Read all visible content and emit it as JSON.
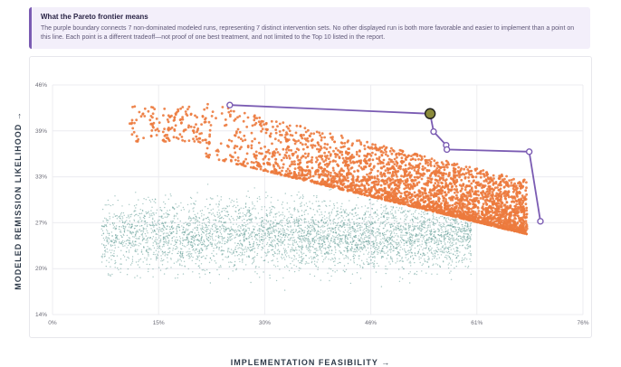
{
  "note": {
    "title": "What the Pareto frontier means",
    "body": "The purple boundary connects 7 non-dominated modeled runs, representing 7 distinct intervention sets. No other displayed run is both more favorable and easier to implement than a point on this line. Each point is a different tradeoff—not proof of one best treatment, and not limited to the Top 10 listed in the report."
  },
  "colors": {
    "frontier": "#7b5cb3",
    "top_runs": "#ec7a3d",
    "other_runs": "#5f9a94",
    "highlight": "#8a8a3a"
  },
  "chart_data": {
    "type": "scatter",
    "xlabel": "IMPLEMENTATION FEASIBILITY →",
    "ylabel": "MODELED REMISSION LIKELIHOOD →",
    "xlim": [
      0,
      76
    ],
    "ylim": [
      14,
      46
    ],
    "x_ticks": [
      "0%",
      "15%",
      "30%",
      "46%",
      "61%",
      "76%"
    ],
    "y_ticks": [
      "46%",
      "39%",
      "33%",
      "27%",
      "20%",
      "14%"
    ],
    "x_tick_values": [
      0,
      15.2,
      30.4,
      45.6,
      60.8,
      76
    ],
    "y_tick_values": [
      46,
      39.6,
      33.2,
      26.8,
      20.4,
      14
    ],
    "grid": true,
    "frontier": [
      {
        "x": 25.4,
        "y": 43.2
      },
      {
        "x": 54.1,
        "y": 42.0
      },
      {
        "x": 54.6,
        "y": 39.5
      },
      {
        "x": 56.4,
        "y": 37.6
      },
      {
        "x": 56.5,
        "y": 37.0
      },
      {
        "x": 68.3,
        "y": 36.7
      },
      {
        "x": 69.9,
        "y": 27.0
      }
    ],
    "highlighted_point": {
      "x": 54.1,
      "y": 42.0
    },
    "clusters": [
      {
        "name": "",
        "role": "top_runs",
        "count": 3200,
        "x_range": [
          11,
          69
        ],
        "upper_y": [
          43.5,
          36.5
        ],
        "lower_boundary": [
          [
            22,
            36
          ],
          [
            68,
            25.2
          ]
        ]
      },
      {
        "name": "",
        "role": "other_runs",
        "count": 4200,
        "x_range": [
          7,
          60
        ],
        "center_y": 25,
        "spread_y": 3.2
      }
    ]
  }
}
